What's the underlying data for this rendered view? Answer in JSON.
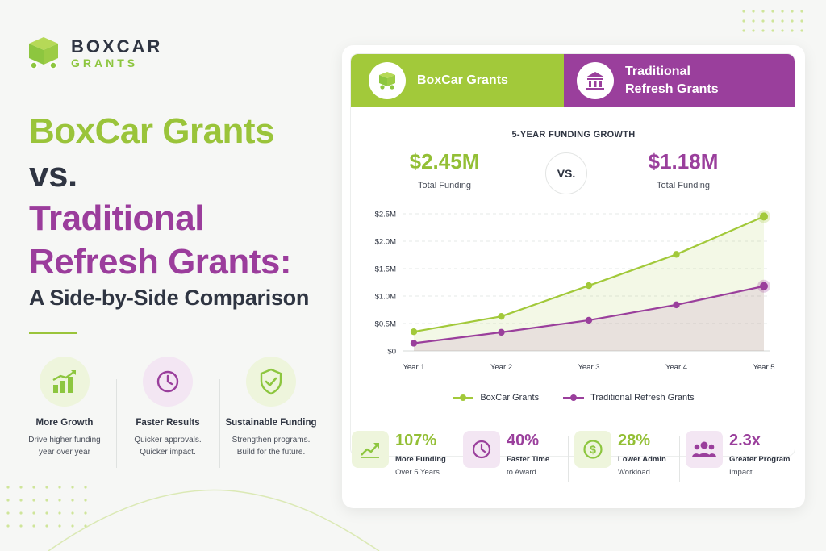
{
  "brand": {
    "name": "BOXCAR",
    "sub": "GRANTS"
  },
  "headline": {
    "line1": "BoxCar Grants",
    "line2": "vs.",
    "line3": "Traditional",
    "line4": "Refresh Grants:",
    "subtitle": "A Side-by-Side Comparison"
  },
  "features": [
    {
      "icon": "bar-growth-icon",
      "title": "More Growth",
      "desc1": "Drive higher funding",
      "desc2": "year over year"
    },
    {
      "icon": "clock-icon",
      "title": "Faster Results",
      "desc1": "Quicker approvals.",
      "desc2": "Quicker impact."
    },
    {
      "icon": "shield-check-icon",
      "title": "Sustainable Funding",
      "desc1": "Strengthen programs.",
      "desc2": "Build for the future."
    }
  ],
  "card": {
    "left_header": "BoxCar Grants",
    "right_header": "Traditional Refresh Grants",
    "chart_title": "5-YEAR FUNDING GROWTH",
    "total_a": "$2.45M",
    "total_a_label": "Total Funding",
    "vs": "VS.",
    "total_b": "$1.18M",
    "total_b_label": "Total Funding"
  },
  "colors": {
    "green": "#a2c93a",
    "purple": "#9a3f9c",
    "dark": "#2f3542"
  },
  "chart_data": {
    "type": "area",
    "title": "5-YEAR FUNDING GROWTH",
    "categories": [
      "Year 1",
      "Year 2",
      "Year 3",
      "Year 4",
      "Year 5"
    ],
    "series": [
      {
        "name": "BoxCar Grants",
        "values": [
          0.35,
          0.63,
          1.19,
          1.76,
          2.45
        ],
        "color": "#a2c93a"
      },
      {
        "name": "Traditional Refresh Grants",
        "values": [
          0.14,
          0.34,
          0.56,
          0.84,
          1.18
        ],
        "color": "#9a3f9c"
      }
    ],
    "y_ticks": [
      "$0",
      "$0.5M",
      "$1.0M",
      "$1.5M",
      "$2.0M",
      "$2.5M"
    ],
    "ylim": [
      0,
      2.5
    ],
    "grid": "horizontal dashed",
    "legend": "bottom-center"
  },
  "stats": [
    {
      "icon": "trend-up-icon",
      "value": "107%",
      "title": "More Funding",
      "sub": "Over 5 Years",
      "tone": "green"
    },
    {
      "icon": "clock-icon",
      "value": "40%",
      "title": "Faster Time",
      "sub": "to Award",
      "tone": "purple"
    },
    {
      "icon": "dollar-icon",
      "value": "28%",
      "title": "Lower Admin",
      "sub": "Workload",
      "tone": "green"
    },
    {
      "icon": "people-icon",
      "value": "2.3x",
      "title": "Greater Program",
      "sub": "Impact",
      "tone": "purple"
    }
  ]
}
